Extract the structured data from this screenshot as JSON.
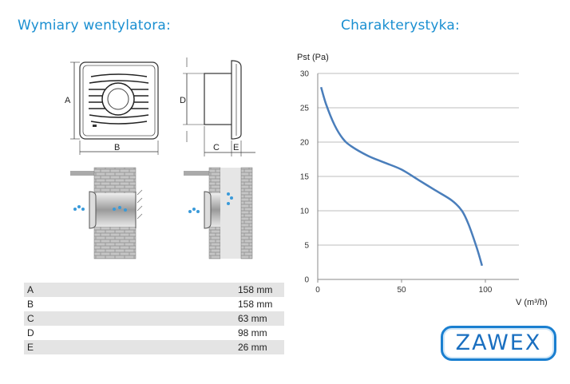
{
  "headings": {
    "dimensions": "Wymiary wentylatora:",
    "characteristics": "Charakterystyka:"
  },
  "drawing_labels": {
    "a": "A",
    "b": "B",
    "c": "C",
    "d": "D",
    "e": "E"
  },
  "dimensions_table": [
    {
      "label": "A",
      "value": "158 mm"
    },
    {
      "label": "B",
      "value": "158 mm"
    },
    {
      "label": "C",
      "value": "63 mm"
    },
    {
      "label": "D",
      "value": "98 mm"
    },
    {
      "label": "E",
      "value": "26 mm"
    }
  ],
  "chart_data": {
    "type": "line",
    "title": "",
    "xlabel": "V (m³/h)",
    "ylabel": "Pst (Pa)",
    "xlim": [
      0,
      120
    ],
    "ylim": [
      0,
      30
    ],
    "xticks": [
      "0",
      "50",
      "100"
    ],
    "yticks": [
      "0",
      "5",
      "10",
      "15",
      "20",
      "25",
      "30"
    ],
    "grid": "horizontal",
    "line_color": "#4a7ebb",
    "series": [
      {
        "x": [
          2,
          5,
          10,
          15,
          20,
          30,
          40,
          50,
          60,
          70,
          80,
          86,
          90,
          95,
          98
        ],
        "y": [
          28,
          25.5,
          22.5,
          20.5,
          19.4,
          18,
          17,
          16,
          14.5,
          13,
          11.5,
          10,
          8,
          4.5,
          2
        ]
      }
    ]
  },
  "logo": {
    "text": "ZAWEX"
  }
}
